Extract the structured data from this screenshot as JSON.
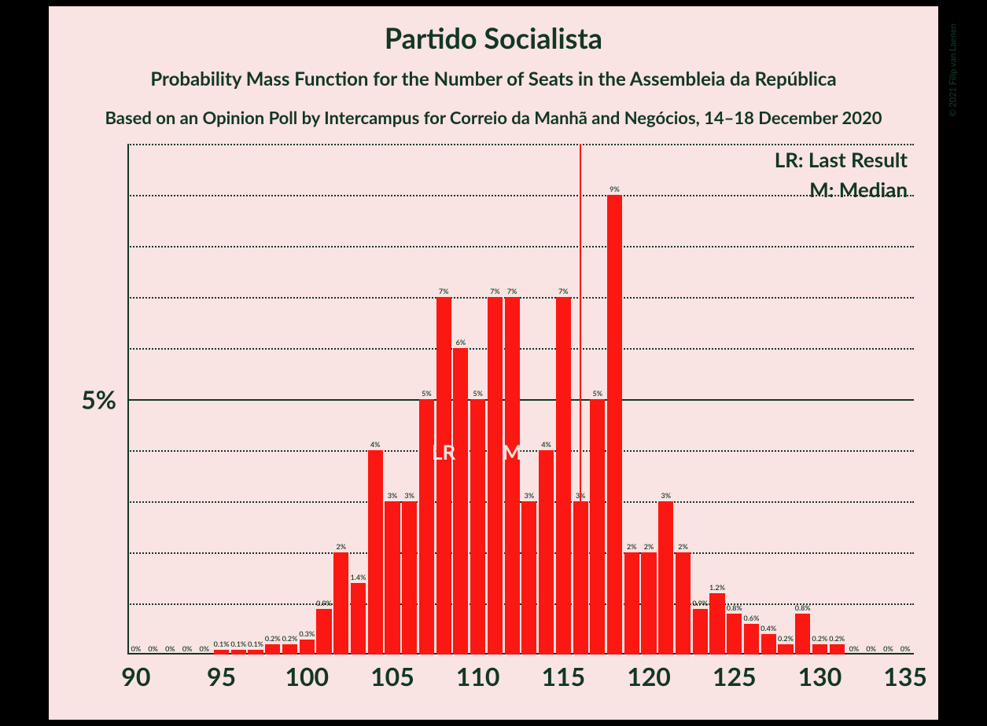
{
  "colors": {
    "page_bg": "#000000",
    "panel_bg": "#fae3e3",
    "text": "#123722",
    "grid": "#123722",
    "bar": "#fb1712",
    "marker_text": "#fae3e3"
  },
  "titles": {
    "main": "Partido Socialista",
    "main_fontsize": 36,
    "sub": "Probability Mass Function for the Number of Seats in the Assembleia da República",
    "sub_fontsize": 24,
    "source": "Based on an Opinion Poll by Intercampus for Correio da Manhã and Negócios, 14–18 December 2020",
    "source_fontsize": 22,
    "copyright": "© 2021 Filip van Laenen"
  },
  "legend": {
    "lr": "LR: Last Result",
    "m": "M: Median"
  },
  "markers": {
    "lr_x": 108,
    "lr_label": "LR",
    "m_x": 112,
    "m_label": "M",
    "vline_x": 116,
    "vline_height_pct": 10.0
  },
  "axes": {
    "x_min": 89.5,
    "x_max": 135.5,
    "x_ticks": [
      90,
      95,
      100,
      105,
      110,
      115,
      120,
      125,
      130,
      135
    ],
    "y_min": 0,
    "y_max": 10,
    "y_minor_step": 1,
    "y_major": 5,
    "y_major_label": "5%"
  },
  "chart": {
    "type": "bar",
    "bar_width": 0.88,
    "data": [
      {
        "x": 90,
        "y": 0,
        "label": "0%"
      },
      {
        "x": 91,
        "y": 0,
        "label": "0%"
      },
      {
        "x": 92,
        "y": 0,
        "label": "0%"
      },
      {
        "x": 93,
        "y": 0,
        "label": "0%"
      },
      {
        "x": 94,
        "y": 0,
        "label": "0%"
      },
      {
        "x": 95,
        "y": 0.1,
        "label": "0.1%"
      },
      {
        "x": 96,
        "y": 0.1,
        "label": "0.1%"
      },
      {
        "x": 97,
        "y": 0.1,
        "label": "0.1%"
      },
      {
        "x": 98,
        "y": 0.2,
        "label": "0.2%"
      },
      {
        "x": 99,
        "y": 0.2,
        "label": "0.2%"
      },
      {
        "x": 100,
        "y": 0.3,
        "label": "0.3%"
      },
      {
        "x": 101,
        "y": 0.9,
        "label": "0.9%"
      },
      {
        "x": 102,
        "y": 2,
        "label": "2%"
      },
      {
        "x": 103,
        "y": 1.4,
        "label": "1.4%"
      },
      {
        "x": 104,
        "y": 4,
        "label": "4%"
      },
      {
        "x": 105,
        "y": 3,
        "label": "3%"
      },
      {
        "x": 106,
        "y": 3,
        "label": "3%"
      },
      {
        "x": 107,
        "y": 5,
        "label": "5%"
      },
      {
        "x": 108,
        "y": 7,
        "label": "7%"
      },
      {
        "x": 109,
        "y": 6,
        "label": "6%"
      },
      {
        "x": 110,
        "y": 5,
        "label": "5%"
      },
      {
        "x": 111,
        "y": 7,
        "label": "7%"
      },
      {
        "x": 112,
        "y": 7,
        "label": "7%"
      },
      {
        "x": 113,
        "y": 3,
        "label": "3%"
      },
      {
        "x": 114,
        "y": 4,
        "label": "4%"
      },
      {
        "x": 115,
        "y": 7,
        "label": "7%"
      },
      {
        "x": 116,
        "y": 3,
        "label": "3%"
      },
      {
        "x": 117,
        "y": 5,
        "label": "5%"
      },
      {
        "x": 118,
        "y": 9,
        "label": "9%"
      },
      {
        "x": 119,
        "y": 2,
        "label": "2%"
      },
      {
        "x": 120,
        "y": 2,
        "label": "2%"
      },
      {
        "x": 121,
        "y": 3,
        "label": "3%"
      },
      {
        "x": 122,
        "y": 2,
        "label": "2%"
      },
      {
        "x": 123,
        "y": 0.9,
        "label": "0.9%"
      },
      {
        "x": 124,
        "y": 1.2,
        "label": "1.2%"
      },
      {
        "x": 125,
        "y": 0.8,
        "label": "0.8%"
      },
      {
        "x": 126,
        "y": 0.6,
        "label": "0.6%"
      },
      {
        "x": 127,
        "y": 0.4,
        "label": "0.4%"
      },
      {
        "x": 128,
        "y": 0.2,
        "label": "0.2%"
      },
      {
        "x": 129,
        "y": 0.8,
        "label": "0.8%"
      },
      {
        "x": 130,
        "y": 0.2,
        "label": "0.2%"
      },
      {
        "x": 131,
        "y": 0.2,
        "label": "0.2%"
      },
      {
        "x": 132,
        "y": 0,
        "label": "0%"
      },
      {
        "x": 133,
        "y": 0,
        "label": "0%"
      },
      {
        "x": 134,
        "y": 0,
        "label": "0%"
      },
      {
        "x": 135,
        "y": 0,
        "label": "0%"
      }
    ]
  }
}
